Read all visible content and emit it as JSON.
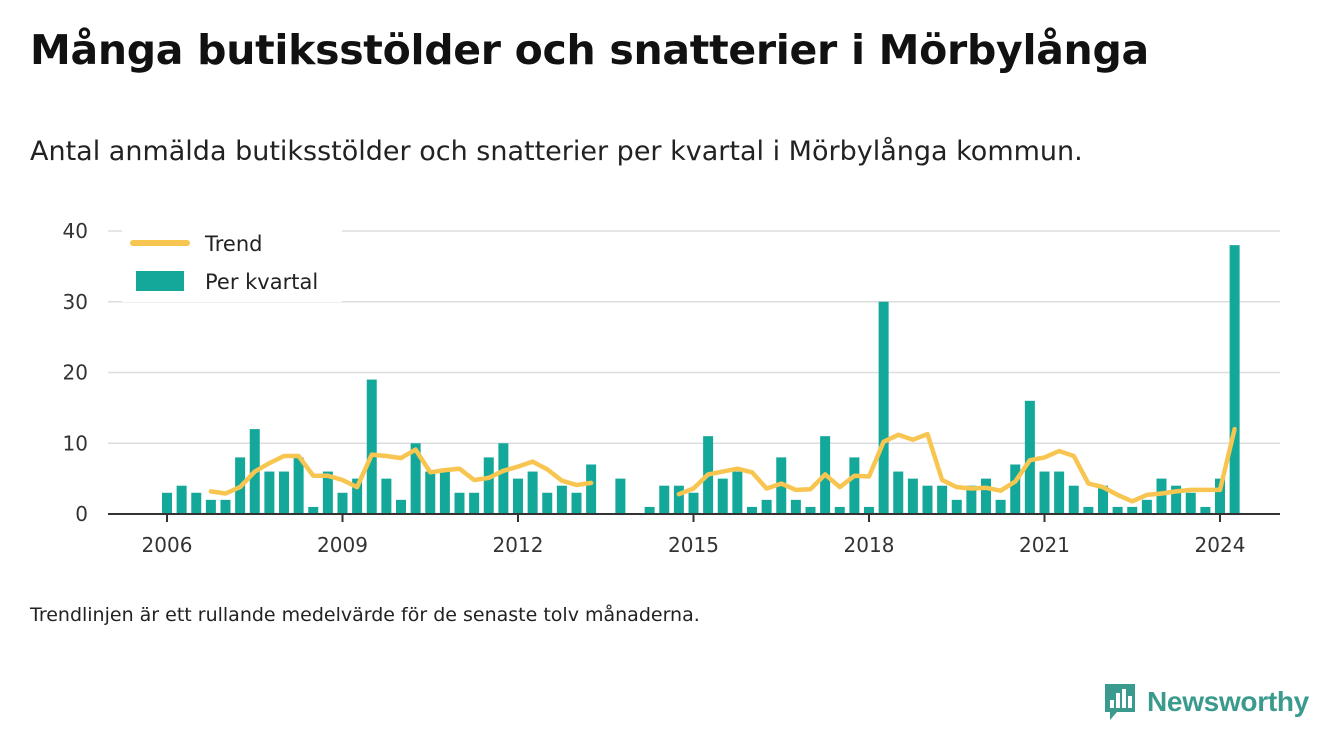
{
  "header": {
    "title": "Många butiksstölder och snatterier i Mörbylånga",
    "subtitle": "Antal anmälda butiksstölder och snatterier per kvartal i Mörbylånga kommun."
  },
  "footnote": "Trendlinjen är ett rullande medelvärde för de senaste tolv månaderna.",
  "brand": {
    "name": "Newsworthy",
    "icon": "newsworthy-logo-icon",
    "color": "#3a9a8d"
  },
  "colors": {
    "bars": "#14a89b",
    "trend": "#f7c550",
    "grid": "#dddddd",
    "axis": "#333333"
  },
  "chart_data": {
    "type": "bar",
    "title": "",
    "xlabel": "",
    "ylabel": "",
    "ylim": [
      0,
      40
    ],
    "yticks": [
      0,
      10,
      20,
      30,
      40
    ],
    "xticks": [
      {
        "label": "2006",
        "x": 2006
      },
      {
        "label": "2009",
        "x": 2009
      },
      {
        "label": "2012",
        "x": 2012
      },
      {
        "label": "2015",
        "x": 2015
      },
      {
        "label": "2018",
        "x": 2018
      },
      {
        "label": "2021",
        "x": 2021
      },
      {
        "label": "2024",
        "x": 2024
      }
    ],
    "grid": true,
    "legend_position": "top-left",
    "series": [
      {
        "name": "Per kvartal",
        "type": "bar",
        "color": "#14a89b",
        "points": [
          {
            "x": "2006 Q1",
            "y": 3
          },
          {
            "x": "2006 Q2",
            "y": 4
          },
          {
            "x": "2006 Q3",
            "y": 3
          },
          {
            "x": "2006 Q4",
            "y": 2
          },
          {
            "x": "2007 Q1",
            "y": 2
          },
          {
            "x": "2007 Q2",
            "y": 8
          },
          {
            "x": "2007 Q3",
            "y": 12
          },
          {
            "x": "2007 Q4",
            "y": 6
          },
          {
            "x": "2008 Q1",
            "y": 6
          },
          {
            "x": "2008 Q2",
            "y": 8
          },
          {
            "x": "2008 Q3",
            "y": 1
          },
          {
            "x": "2008 Q4",
            "y": 6
          },
          {
            "x": "2009 Q1",
            "y": 3
          },
          {
            "x": "2009 Q2",
            "y": 5
          },
          {
            "x": "2009 Q3",
            "y": 19
          },
          {
            "x": "2009 Q4",
            "y": 5
          },
          {
            "x": "2010 Q1",
            "y": 2
          },
          {
            "x": "2010 Q2",
            "y": 10
          },
          {
            "x": "2010 Q3",
            "y": 6
          },
          {
            "x": "2010 Q4",
            "y": 6
          },
          {
            "x": "2011 Q1",
            "y": 3
          },
          {
            "x": "2011 Q2",
            "y": 3
          },
          {
            "x": "2011 Q3",
            "y": 8
          },
          {
            "x": "2011 Q4",
            "y": 10
          },
          {
            "x": "2012 Q1",
            "y": 5
          },
          {
            "x": "2012 Q2",
            "y": 6
          },
          {
            "x": "2012 Q3",
            "y": 3
          },
          {
            "x": "2012 Q4",
            "y": 4
          },
          {
            "x": "2013 Q1",
            "y": 3
          },
          {
            "x": "2013 Q2",
            "y": 7
          },
          {
            "x": "2013 Q3",
            "y": 0
          },
          {
            "x": "2013 Q4",
            "y": 5
          },
          {
            "x": "2014 Q1",
            "y": 0
          },
          {
            "x": "2014 Q2",
            "y": 1
          },
          {
            "x": "2014 Q3",
            "y": 4
          },
          {
            "x": "2014 Q4",
            "y": 4
          },
          {
            "x": "2015 Q1",
            "y": 3
          },
          {
            "x": "2015 Q2",
            "y": 11
          },
          {
            "x": "2015 Q3",
            "y": 5
          },
          {
            "x": "2015 Q4",
            "y": 6
          },
          {
            "x": "2016 Q1",
            "y": 1
          },
          {
            "x": "2016 Q2",
            "y": 2
          },
          {
            "x": "2016 Q3",
            "y": 8
          },
          {
            "x": "2016 Q4",
            "y": 2
          },
          {
            "x": "2017 Q1",
            "y": 1
          },
          {
            "x": "2017 Q2",
            "y": 11
          },
          {
            "x": "2017 Q3",
            "y": 1
          },
          {
            "x": "2017 Q4",
            "y": 8
          },
          {
            "x": "2018 Q1",
            "y": 1
          },
          {
            "x": "2018 Q2",
            "y": 30
          },
          {
            "x": "2018 Q3",
            "y": 6
          },
          {
            "x": "2018 Q4",
            "y": 5
          },
          {
            "x": "2019 Q1",
            "y": 4
          },
          {
            "x": "2019 Q2",
            "y": 4
          },
          {
            "x": "2019 Q3",
            "y": 2
          },
          {
            "x": "2019 Q4",
            "y": 4
          },
          {
            "x": "2020 Q1",
            "y": 5
          },
          {
            "x": "2020 Q2",
            "y": 2
          },
          {
            "x": "2020 Q3",
            "y": 7
          },
          {
            "x": "2020 Q4",
            "y": 16
          },
          {
            "x": "2021 Q1",
            "y": 6
          },
          {
            "x": "2021 Q2",
            "y": 6
          },
          {
            "x": "2021 Q3",
            "y": 4
          },
          {
            "x": "2021 Q4",
            "y": 1
          },
          {
            "x": "2022 Q1",
            "y": 4
          },
          {
            "x": "2022 Q2",
            "y": 1
          },
          {
            "x": "2022 Q3",
            "y": 1
          },
          {
            "x": "2022 Q4",
            "y": 2
          },
          {
            "x": "2023 Q1",
            "y": 5
          },
          {
            "x": "2023 Q2",
            "y": 4
          },
          {
            "x": "2023 Q3",
            "y": 3
          },
          {
            "x": "2023 Q4",
            "y": 1
          },
          {
            "x": "2024 Q1",
            "y": 5
          },
          {
            "x": "2024 Q2",
            "y": 38
          }
        ]
      },
      {
        "name": "Trend",
        "type": "line",
        "color": "#f7c550",
        "segments": [
          [
            {
              "x": "2006 Q4",
              "y": 3.2
            },
            {
              "x": "2007 Q1",
              "y": 2.9
            },
            {
              "x": "2007 Q2",
              "y": 3.8
            },
            {
              "x": "2007 Q3",
              "y": 6.0
            },
            {
              "x": "2007 Q4",
              "y": 7.2
            },
            {
              "x": "2008 Q1",
              "y": 8.2
            },
            {
              "x": "2008 Q2",
              "y": 8.2
            },
            {
              "x": "2008 Q3",
              "y": 5.4
            },
            {
              "x": "2008 Q4",
              "y": 5.4
            },
            {
              "x": "2009 Q1",
              "y": 4.8
            },
            {
              "x": "2009 Q2",
              "y": 3.8
            },
            {
              "x": "2009 Q3",
              "y": 8.4
            },
            {
              "x": "2009 Q4",
              "y": 8.2
            },
            {
              "x": "2010 Q1",
              "y": 7.9
            },
            {
              "x": "2010 Q2",
              "y": 9.1
            },
            {
              "x": "2010 Q3",
              "y": 5.9
            },
            {
              "x": "2010 Q4",
              "y": 6.2
            },
            {
              "x": "2011 Q1",
              "y": 6.4
            },
            {
              "x": "2011 Q2",
              "y": 4.8
            },
            {
              "x": "2011 Q3",
              "y": 5.1
            },
            {
              "x": "2011 Q4",
              "y": 6.1
            },
            {
              "x": "2012 Q1",
              "y": 6.7
            },
            {
              "x": "2012 Q2",
              "y": 7.4
            },
            {
              "x": "2012 Q3",
              "y": 6.3
            },
            {
              "x": "2012 Q4",
              "y": 4.7
            },
            {
              "x": "2013 Q1",
              "y": 4.1
            },
            {
              "x": "2013 Q2",
              "y": 4.4
            }
          ],
          [
            {
              "x": "2014 Q4",
              "y": 2.8
            },
            {
              "x": "2015 Q1",
              "y": 3.6
            },
            {
              "x": "2015 Q2",
              "y": 5.6
            },
            {
              "x": "2015 Q3",
              "y": 6.0
            },
            {
              "x": "2015 Q4",
              "y": 6.4
            },
            {
              "x": "2016 Q1",
              "y": 5.9
            },
            {
              "x": "2016 Q2",
              "y": 3.6
            },
            {
              "x": "2016 Q3",
              "y": 4.3
            },
            {
              "x": "2016 Q4",
              "y": 3.4
            },
            {
              "x": "2017 Q1",
              "y": 3.5
            },
            {
              "x": "2017 Q2",
              "y": 5.6
            },
            {
              "x": "2017 Q3",
              "y": 3.8
            },
            {
              "x": "2017 Q4",
              "y": 5.4
            },
            {
              "x": "2018 Q1",
              "y": 5.3
            },
            {
              "x": "2018 Q2",
              "y": 10.2
            },
            {
              "x": "2018 Q3",
              "y": 11.2
            },
            {
              "x": "2018 Q4",
              "y": 10.5
            },
            {
              "x": "2019 Q1",
              "y": 11.3
            },
            {
              "x": "2019 Q2",
              "y": 4.8
            },
            {
              "x": "2019 Q3",
              "y": 3.8
            },
            {
              "x": "2019 Q4",
              "y": 3.6
            },
            {
              "x": "2020 Q1",
              "y": 3.7
            },
            {
              "x": "2020 Q2",
              "y": 3.3
            },
            {
              "x": "2020 Q3",
              "y": 4.6
            },
            {
              "x": "2020 Q4",
              "y": 7.6
            },
            {
              "x": "2021 Q1",
              "y": 8.0
            },
            {
              "x": "2021 Q2",
              "y": 8.9
            },
            {
              "x": "2021 Q3",
              "y": 8.2
            },
            {
              "x": "2021 Q4",
              "y": 4.3
            },
            {
              "x": "2022 Q1",
              "y": 3.8
            },
            {
              "x": "2022 Q2",
              "y": 2.7
            },
            {
              "x": "2022 Q3",
              "y": 1.8
            },
            {
              "x": "2022 Q4",
              "y": 2.7
            },
            {
              "x": "2023 Q1",
              "y": 2.9
            },
            {
              "x": "2023 Q2",
              "y": 3.2
            },
            {
              "x": "2023 Q3",
              "y": 3.4
            },
            {
              "x": "2023 Q4",
              "y": 3.4
            },
            {
              "x": "2024 Q1",
              "y": 3.4
            },
            {
              "x": "2024 Q2",
              "y": 12.0
            }
          ]
        ]
      }
    ]
  }
}
